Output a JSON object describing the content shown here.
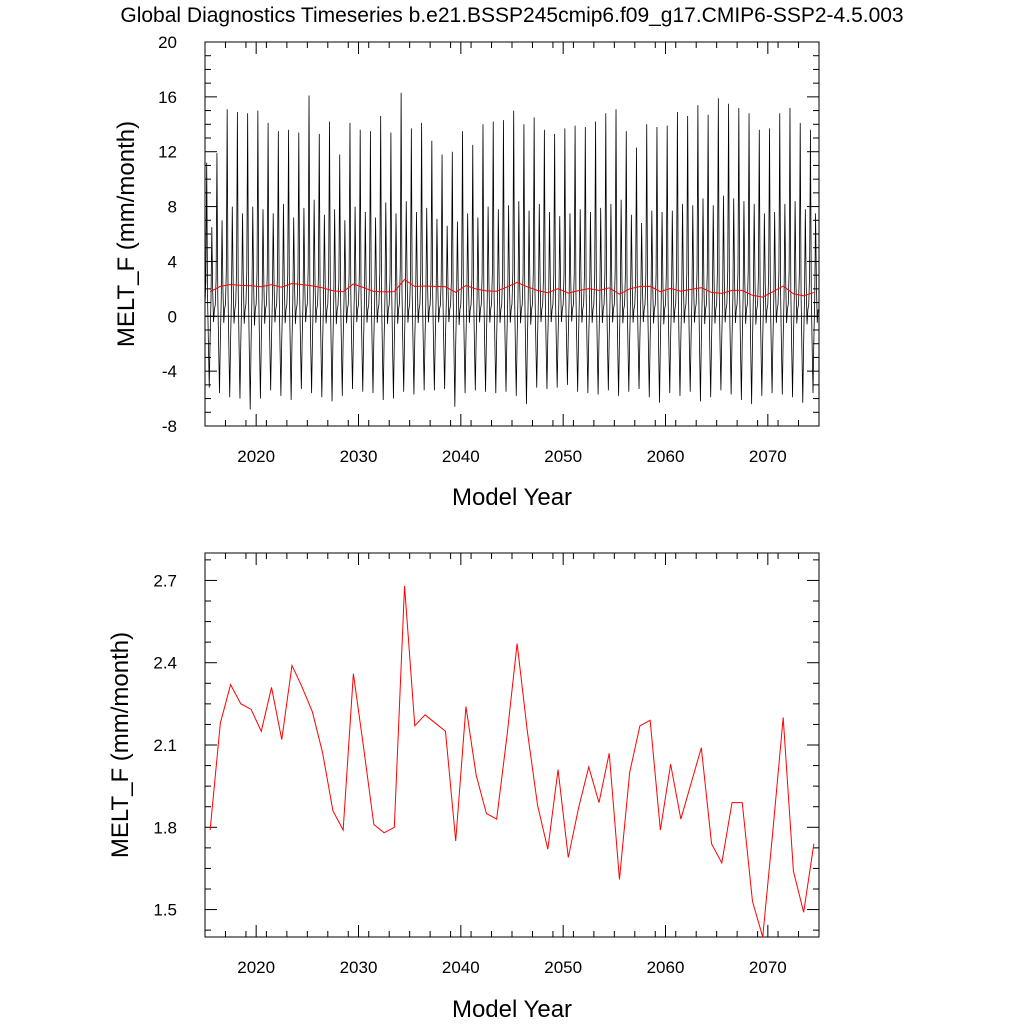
{
  "title": "Global Diagnostics Timeseries b.e21.BSSP245cmip6.f09_g17.CMIP6-SSP2-4.5.003",
  "colors": {
    "monthly": "#000000",
    "annual": "#ff0000",
    "axes": "#000000"
  },
  "chart_data": [
    {
      "type": "line",
      "xlabel": "Model Year",
      "ylabel": "MELT_F (mm/month)",
      "xlim": [
        2015,
        2075
      ],
      "ylim": [
        -8,
        20
      ],
      "xticks": [
        2020,
        2030,
        2040,
        2050,
        2060,
        2070
      ],
      "yticks": [
        -8,
        -4,
        0,
        4,
        8,
        12,
        16,
        20
      ],
      "reference_line_y": 0,
      "series": [
        {
          "kind": "monthly",
          "x_start": 2015.0,
          "x_step": 0.08333,
          "annual_max_peaks": [
            11.2,
            11.9,
            15.1,
            14.9,
            14.8,
            15.0,
            14.1,
            13.5,
            13.6,
            13.4,
            16.1,
            13.3,
            14.2,
            11.8,
            14.1,
            13.6,
            13.5,
            14.6,
            13.4,
            16.3,
            13.7,
            14.1,
            12.8,
            11.8,
            12.0,
            13.5,
            12.5,
            14.0,
            14.2,
            14.3,
            15.0,
            14.0,
            14.5,
            13.6,
            13.3,
            13.7,
            13.9,
            13.8,
            14.2,
            14.8,
            15.1,
            13.5,
            12.3,
            14.0,
            13.8,
            13.9,
            14.9,
            14.6,
            15.4,
            14.7,
            15.9,
            15.5,
            15.2,
            14.8,
            13.6,
            13.7,
            14.8,
            15.2,
            14.1,
            13.6
          ],
          "annual_min_troughs": [
            -5.2,
            -5.6,
            -5.9,
            -6.0,
            -6.8,
            -6.0,
            -5.4,
            -5.8,
            -6.1,
            -5.3,
            -5.6,
            -5.9,
            -6.2,
            -5.8,
            -5.3,
            -5.5,
            -5.6,
            -6.1,
            -6.0,
            -5.5,
            -5.7,
            -5.4,
            -5.4,
            -5.3,
            -6.6,
            -5.6,
            -5.4,
            -5.5,
            -5.6,
            -5.5,
            -5.8,
            -6.4,
            -5.2,
            -5.3,
            -5.2,
            -5.0,
            -5.5,
            -5.6,
            -5.7,
            -5.4,
            -5.8,
            -5.5,
            -5.3,
            -5.9,
            -6.3,
            -5.6,
            -5.8,
            -5.5,
            -6.2,
            -5.9,
            -5.4,
            -5.7,
            -6.1,
            -6.4,
            -5.8,
            -5.6,
            -5.7,
            -5.9,
            -6.3,
            -5.6
          ],
          "annual_secondary_peaks": [
            6.5,
            7.0,
            8.0,
            7.5,
            8.0,
            7.8,
            7.5,
            8.2,
            7.2,
            7.9,
            8.5,
            7.4,
            7.8,
            7.0,
            8.0,
            7.6,
            7.2,
            8.3,
            7.5,
            8.4,
            7.6,
            7.9,
            7.1,
            6.6,
            6.9,
            7.5,
            7.2,
            8.0,
            7.8,
            8.1,
            8.4,
            7.7,
            8.2,
            7.6,
            7.3,
            7.5,
            7.8,
            7.6,
            7.9,
            8.2,
            8.5,
            7.4,
            6.8,
            7.7,
            7.6,
            7.7,
            8.2,
            8.1,
            8.6,
            8.1,
            8.8,
            8.6,
            8.4,
            8.2,
            7.5,
            7.6,
            8.2,
            8.4,
            7.8,
            7.5
          ]
        },
        {
          "kind": "annual",
          "x": [
            2015.5,
            2016.5,
            2017.5,
            2018.5,
            2019.5,
            2020.5,
            2021.5,
            2022.5,
            2023.5,
            2024.5,
            2025.5,
            2026.5,
            2027.5,
            2028.5,
            2029.5,
            2030.5,
            2031.5,
            2032.5,
            2033.5,
            2034.5,
            2035.5,
            2036.5,
            2037.5,
            2038.5,
            2039.5,
            2040.5,
            2041.5,
            2042.5,
            2043.5,
            2044.5,
            2045.5,
            2046.5,
            2047.5,
            2048.5,
            2049.5,
            2050.5,
            2051.5,
            2052.5,
            2053.5,
            2054.5,
            2055.5,
            2056.5,
            2057.5,
            2058.5,
            2059.5,
            2060.5,
            2061.5,
            2062.5,
            2063.5,
            2064.5,
            2065.5,
            2066.5,
            2067.5,
            2068.5,
            2069.5,
            2070.5,
            2071.5,
            2072.5,
            2073.5,
            2074.5
          ],
          "y": [
            1.79,
            2.18,
            2.32,
            2.25,
            2.23,
            2.15,
            2.31,
            2.12,
            2.39,
            2.31,
            2.22,
            2.07,
            1.86,
            1.79,
            2.36,
            2.09,
            1.81,
            1.78,
            1.8,
            2.68,
            2.17,
            2.21,
            2.18,
            2.15,
            1.75,
            2.24,
            1.99,
            1.85,
            1.83,
            2.13,
            2.47,
            2.15,
            1.88,
            1.72,
            2.01,
            1.69,
            1.87,
            2.02,
            1.89,
            2.07,
            1.61,
            2.0,
            2.17,
            2.19,
            1.79,
            2.03,
            1.83,
            1.96,
            2.09,
            1.74,
            1.67,
            1.89,
            1.89,
            1.53,
            1.4,
            1.79,
            2.2,
            1.64,
            1.49,
            1.74
          ]
        }
      ]
    },
    {
      "type": "line",
      "xlabel": "Model Year",
      "ylabel": "MELT_F (mm/month)",
      "xlim": [
        2015,
        2075
      ],
      "ylim": [
        1.4,
        2.8
      ],
      "xticks": [
        2020,
        2030,
        2040,
        2050,
        2060,
        2070
      ],
      "yticks": [
        1.5,
        1.8,
        2.1,
        2.4,
        2.7
      ],
      "series": [
        {
          "kind": "annual",
          "x": [
            2015.5,
            2016.5,
            2017.5,
            2018.5,
            2019.5,
            2020.5,
            2021.5,
            2022.5,
            2023.5,
            2024.5,
            2025.5,
            2026.5,
            2027.5,
            2028.5,
            2029.5,
            2030.5,
            2031.5,
            2032.5,
            2033.5,
            2034.5,
            2035.5,
            2036.5,
            2037.5,
            2038.5,
            2039.5,
            2040.5,
            2041.5,
            2042.5,
            2043.5,
            2044.5,
            2045.5,
            2046.5,
            2047.5,
            2048.5,
            2049.5,
            2050.5,
            2051.5,
            2052.5,
            2053.5,
            2054.5,
            2055.5,
            2056.5,
            2057.5,
            2058.5,
            2059.5,
            2060.5,
            2061.5,
            2062.5,
            2063.5,
            2064.5,
            2065.5,
            2066.5,
            2067.5,
            2068.5,
            2069.5,
            2070.5,
            2071.5,
            2072.5,
            2073.5,
            2074.5
          ],
          "y": [
            1.79,
            2.18,
            2.32,
            2.25,
            2.23,
            2.15,
            2.31,
            2.12,
            2.39,
            2.31,
            2.22,
            2.07,
            1.86,
            1.79,
            2.36,
            2.09,
            1.81,
            1.78,
            1.8,
            2.68,
            2.17,
            2.21,
            2.18,
            2.15,
            1.75,
            2.24,
            1.99,
            1.85,
            1.83,
            2.13,
            2.47,
            2.15,
            1.88,
            1.72,
            2.01,
            1.69,
            1.87,
            2.02,
            1.89,
            2.07,
            1.61,
            2.0,
            2.17,
            2.19,
            1.79,
            2.03,
            1.83,
            1.96,
            2.09,
            1.74,
            1.67,
            1.89,
            1.89,
            1.53,
            1.4,
            1.79,
            2.2,
            1.64,
            1.49,
            1.74
          ]
        }
      ]
    }
  ]
}
